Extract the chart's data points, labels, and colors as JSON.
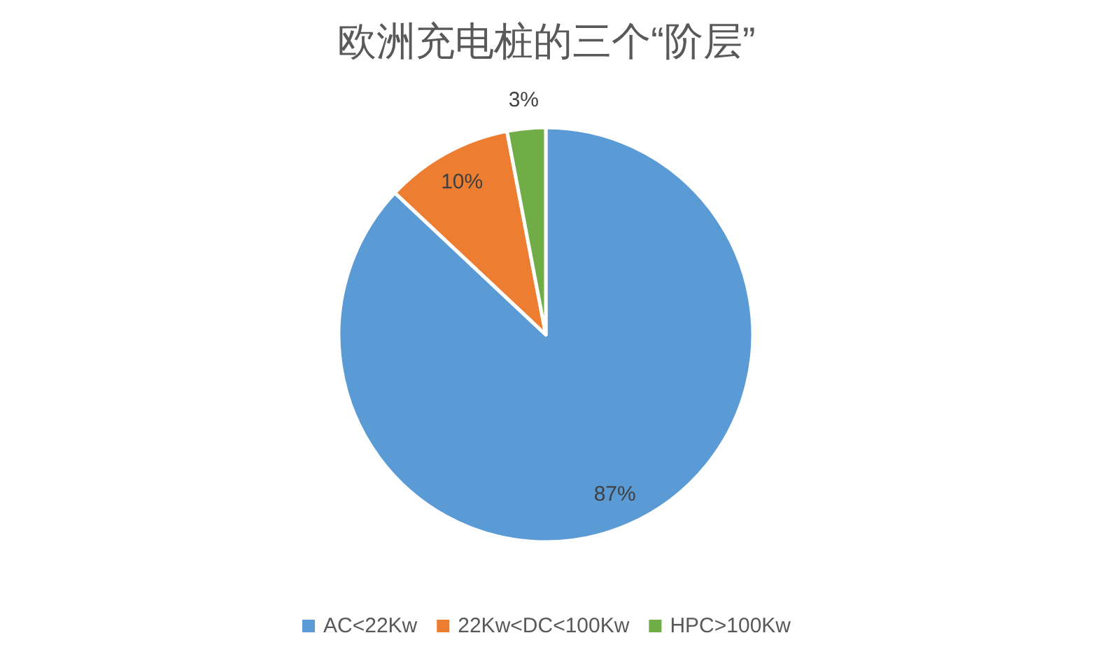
{
  "chart_data": {
    "type": "pie",
    "title": "欧洲充电桩的三个“阶层”",
    "categories": [
      "AC<22Kw",
      "22Kw<DC<100Kw",
      "HPC>100Kw"
    ],
    "values": [
      87,
      10,
      3
    ],
    "colors": [
      "#5b9bd5",
      "#ed7d31",
      "#70ad47"
    ],
    "value_labels": [
      "87%",
      "10%",
      "3%"
    ],
    "legend": "bottom"
  }
}
